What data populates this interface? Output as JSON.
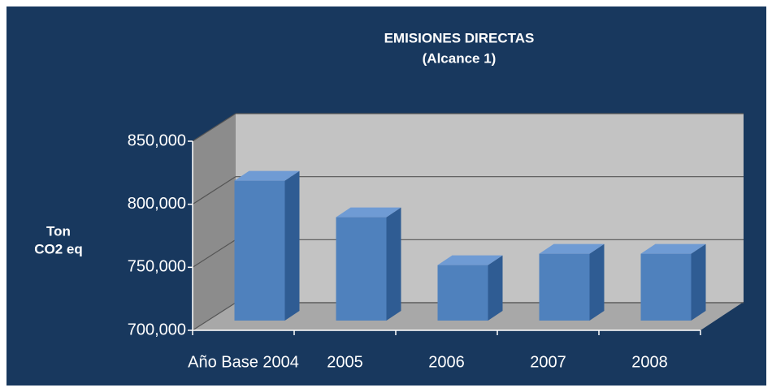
{
  "chart_data": {
    "type": "bar3d",
    "title": "EMISIONES DIRECTAS",
    "subtitle": "(Alcance 1)",
    "y_label": [
      "Ton",
      "CO2 eq"
    ],
    "categories": [
      "Año Base 2004",
      "2005",
      "2006",
      "2007",
      "2008"
    ],
    "values": [
      811000,
      782000,
      744000,
      753000,
      753000
    ],
    "color": "#4f81bd",
    "ylim": [
      700000,
      850000
    ],
    "yticks": [
      {
        "value": 700000,
        "label": "700,000"
      },
      {
        "value": 750000,
        "label": "750,000"
      },
      {
        "value": 800000,
        "label": "800,000"
      },
      {
        "value": 850000,
        "label": "850,000"
      }
    ],
    "grid": true
  }
}
